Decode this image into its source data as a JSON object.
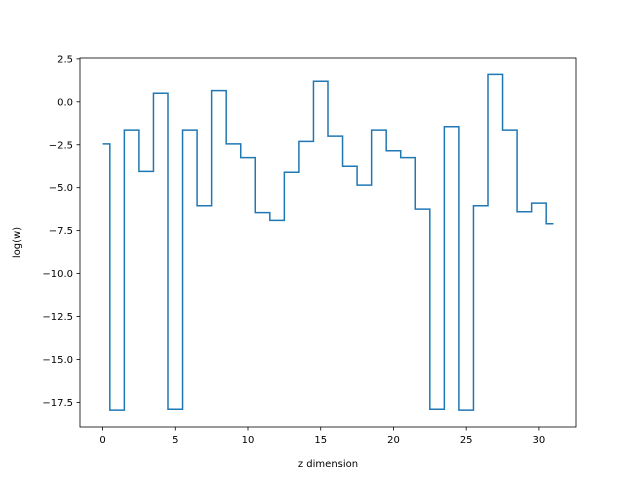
{
  "chart_data": {
    "type": "line",
    "drawstyle": "steps-mid",
    "xlabel": "z dimension",
    "ylabel": "log(w)",
    "xlim": [
      -1.55,
      32.55
    ],
    "ylim": [
      -18.93,
      2.55
    ],
    "x_ticks": [
      0,
      5,
      10,
      15,
      20,
      25,
      30
    ],
    "y_ticks": [
      2.5,
      0.0,
      -2.5,
      -5.0,
      -7.5,
      -10.0,
      -12.5,
      -15.0,
      -17.5
    ],
    "y_tick_labels": [
      "2.5",
      "0.0",
      "−2.5",
      "−5.0",
      "−7.5",
      "−10.0",
      "−12.5",
      "−15.0",
      "−17.5"
    ],
    "grid": false,
    "series": [
      {
        "color": "#1f77b4",
        "x": [
          0,
          1,
          2,
          3,
          4,
          5,
          6,
          7,
          8,
          9,
          10,
          11,
          12,
          13,
          14,
          15,
          16,
          17,
          18,
          19,
          20,
          21,
          22,
          23,
          24,
          25,
          26,
          27,
          28,
          29,
          30,
          31
        ],
        "values": [
          -2.45,
          -17.95,
          -1.65,
          -4.05,
          0.5,
          -17.9,
          -1.65,
          -6.05,
          0.65,
          -2.45,
          -3.25,
          -6.45,
          -6.9,
          -4.1,
          -2.3,
          1.2,
          -2.0,
          -3.75,
          -4.85,
          -1.65,
          -2.85,
          -3.25,
          -6.25,
          -17.9,
          -1.45,
          -17.95,
          -6.05,
          1.6,
          -1.65,
          -6.4,
          -5.9,
          -7.1
        ]
      }
    ]
  }
}
